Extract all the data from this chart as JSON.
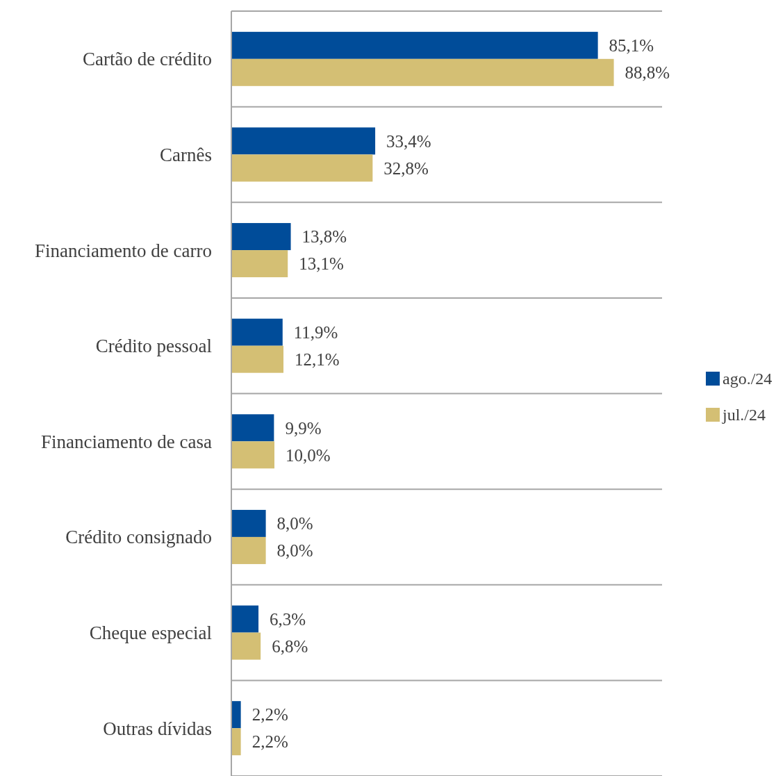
{
  "chart_data": {
    "type": "bar",
    "orientation": "horizontal",
    "categories": [
      "Cartão de crédito",
      "Carnês",
      "Financiamento de carro",
      "Crédito pessoal",
      "Financiamento de casa",
      "Crédito consignado",
      "Cheque especial",
      "Outras dívidas"
    ],
    "series": [
      {
        "name": "ago./24",
        "color": "#004c99",
        "values": [
          85.1,
          33.4,
          13.8,
          11.9,
          9.9,
          8.0,
          6.3,
          2.2
        ],
        "value_labels": [
          "85,1%",
          "33,4%",
          "13,8%",
          "11,9%",
          "9,9%",
          "8,0%",
          "6,3%",
          "2,2%"
        ]
      },
      {
        "name": "jul./24",
        "color": "#d4bf74",
        "values": [
          88.8,
          32.8,
          13.1,
          12.1,
          10.0,
          8.0,
          6.8,
          2.2
        ],
        "value_labels": [
          "88,8%",
          "32,8%",
          "13,1%",
          "12,1%",
          "10,0%",
          "8,0%",
          "6,8%",
          "2,2%"
        ]
      }
    ],
    "xlim": [
      0,
      100
    ],
    "tick_labels": "y",
    "grid": "y",
    "legend": "right"
  }
}
